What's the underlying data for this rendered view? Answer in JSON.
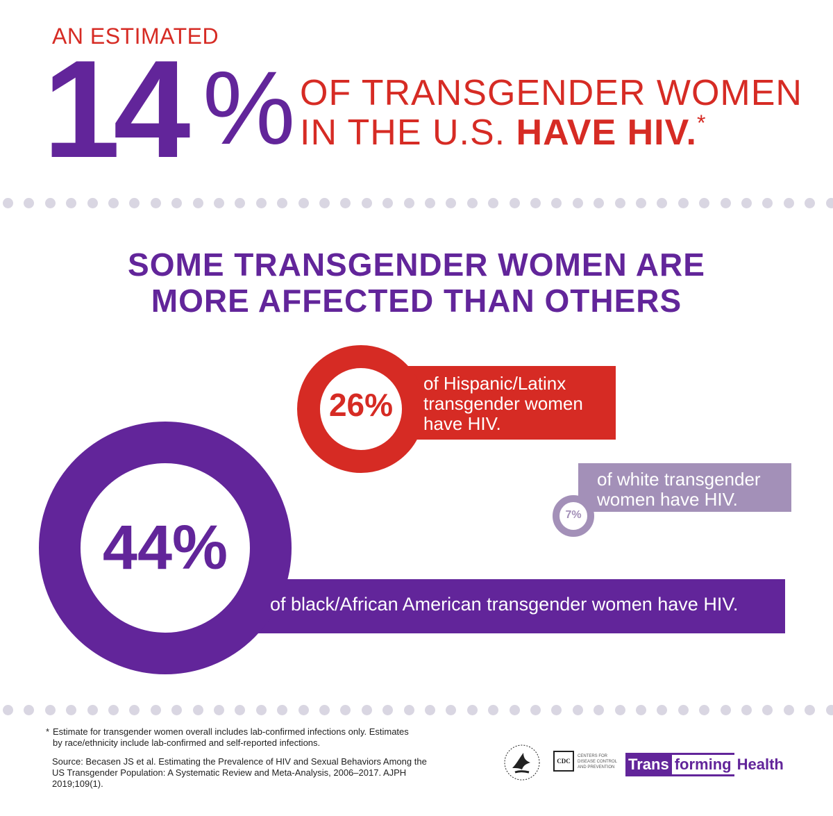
{
  "header": {
    "kicker": "AN ESTIMATED",
    "stat_number": "14",
    "stat_percent": "%",
    "line1": "OF TRANSGENDER WOMEN",
    "line2_prefix": "IN THE U.S. ",
    "line2_bold": "HAVE HIV.",
    "asterisk": "*"
  },
  "subheading": {
    "line1": "SOME TRANSGENDER WOMEN ARE",
    "line2": "MORE AFFECTED THAN OTHERS"
  },
  "stats": {
    "hispanic": {
      "value": "26%",
      "line1": "of Hispanic/Latinx",
      "line2": "transgender women",
      "line3": "have HIV."
    },
    "white": {
      "value": "7%",
      "line1": "of white transgender",
      "line2": "women have HIV."
    },
    "black": {
      "value": "44%",
      "text": "of black/African American transgender women have HIV."
    }
  },
  "footer": {
    "note_star": "*",
    "note": "Estimate for transgender women overall includes lab-confirmed infections only. Estimates by race/ethnicity include lab-confirmed and self-reported infections.",
    "source": "Source: Becasen JS et al. Estimating the Prevalence of HIV and Sexual Behaviors Among the US Transgender Population: A Systematic Review and Meta-Analysis, 2006–2017. AJPH 2019;109(1).",
    "cdc_mark": "CDC",
    "cdc_sub": "CENTERS FOR DISEASE CONTROL AND PREVENTION",
    "brand_trans": "Trans",
    "brand_forming": "forming",
    "brand_health": "Health"
  },
  "colors": {
    "purple": "#62259a",
    "red": "#d62b24",
    "lavender": "#a390b8",
    "dot": "#d9d6e2"
  }
}
